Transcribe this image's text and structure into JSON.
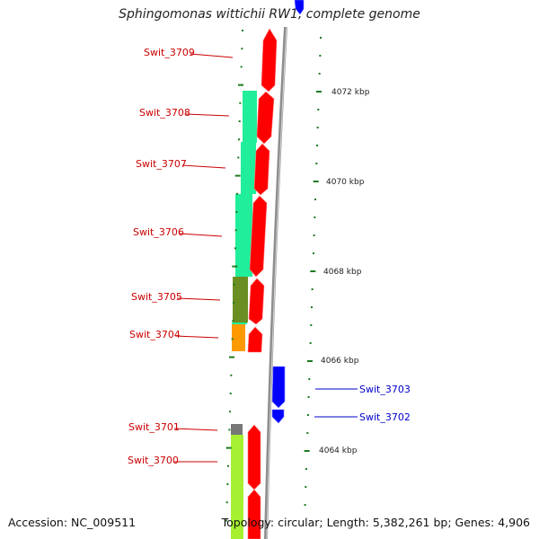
{
  "title": "Sphingomonas wittichii RW1, complete genome",
  "accession": "Accession: NC_009511",
  "topology": "Topology: circular; Length: 5,382,261 bp; Genes: 4,906",
  "colors": {
    "forward_cds": "#ff0000",
    "reverse_cds": "#0000ff",
    "backbone": "#9a9a9a",
    "tick": "#1e7b1e",
    "label_forward": "#cc0000",
    "label_reverse": "#0000cc"
  },
  "kbp_labels": [
    "4072 kbp",
    "4070 kbp",
    "4068 kbp",
    "4066 kbp",
    "4064 kbp"
  ],
  "genes": [
    {
      "id": "Swit_3709",
      "strand": "+"
    },
    {
      "id": "Swit_3708",
      "strand": "+"
    },
    {
      "id": "Swit_3707",
      "strand": "+"
    },
    {
      "id": "Swit_3706",
      "strand": "+"
    },
    {
      "id": "Swit_3705",
      "strand": "+"
    },
    {
      "id": "Swit_3704",
      "strand": "+"
    },
    {
      "id": "Swit_3703",
      "strand": "-"
    },
    {
      "id": "Swit_3702",
      "strand": "-"
    },
    {
      "id": "Swit_3701",
      "strand": "+"
    },
    {
      "id": "Swit_3700",
      "strand": "+"
    }
  ]
}
